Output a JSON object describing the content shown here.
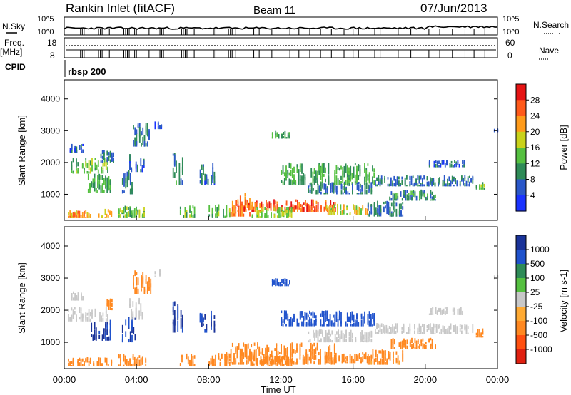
{
  "header": {
    "station": "Rankin Inlet (fitACF)",
    "beam": "Beam 11",
    "date": "07/Jun/2013"
  },
  "strip_labels": {
    "nsky": "N.Sky",
    "nsearch": "N.Search",
    "freq": "Freq.",
    "freq_unit": "[MHz]",
    "nave": "Nave",
    "cpid": "CPID",
    "mode": "rbsp 200",
    "noise_ticks_left": [
      "10^5",
      "10^0"
    ],
    "noise_ticks_right": [
      "10^5",
      "10^0"
    ],
    "freq_ticks": [
      "18",
      "8"
    ],
    "nave_ticks": [
      "60",
      "0"
    ]
  },
  "colors": {
    "power": [
      "#1a33ff",
      "#2a57c9",
      "#2e8b57",
      "#55c040",
      "#c9d21a",
      "#ff9b1a",
      "#ff5a1a",
      "#e61414"
    ],
    "velocity": [
      "#1a3399",
      "#1f52cc",
      "#2e8b57",
      "#55c040",
      "#c8c8c8",
      "#ffaa33",
      "#ff8820",
      "#ff5010",
      "#e02010"
    ]
  },
  "chart_data": [
    {
      "type": "heatmap",
      "quantity": "Power",
      "xlabel": "",
      "ylabel": "Slant Range [km]",
      "xlim": [
        0,
        24
      ],
      "ylim": [
        180,
        4600
      ],
      "yticks": [
        "1000",
        "2000",
        "3000",
        "4000"
      ],
      "colorbar": {
        "label": "Power [dB]",
        "ticks": [
          "28",
          "24",
          "20",
          "16",
          "12",
          "8",
          "4"
        ],
        "range": [
          0,
          32
        ]
      },
      "regions": [
        {
          "t0": 0.2,
          "t1": 1.5,
          "r0": 250,
          "r1": 500,
          "value": 22
        },
        {
          "t0": 0.2,
          "t1": 2.4,
          "r0": 1650,
          "r1": 2150,
          "value": 14
        },
        {
          "t0": 0.3,
          "t1": 1.0,
          "r0": 2300,
          "r1": 2600,
          "value": 6
        },
        {
          "t0": 1.3,
          "t1": 2.6,
          "r0": 1050,
          "r1": 1700,
          "value": 12
        },
        {
          "t0": 2.0,
          "t1": 2.7,
          "r0": 2000,
          "r1": 2400,
          "value": 8
        },
        {
          "t0": 1.8,
          "t1": 2.6,
          "r0": 250,
          "r1": 550,
          "value": 20
        },
        {
          "t0": 3.0,
          "t1": 4.5,
          "r0": 250,
          "r1": 650,
          "value": 14
        },
        {
          "t0": 3.2,
          "t1": 3.9,
          "r0": 1000,
          "r1": 1800,
          "value": 8
        },
        {
          "t0": 3.6,
          "t1": 4.4,
          "r0": 1700,
          "r1": 2400,
          "value": 6
        },
        {
          "t0": 3.8,
          "t1": 4.8,
          "r0": 2500,
          "r1": 3250,
          "value": 8
        },
        {
          "t0": 5.0,
          "t1": 5.4,
          "r0": 3050,
          "r1": 3300,
          "value": 6
        },
        {
          "t0": 6.0,
          "t1": 6.6,
          "r0": 1300,
          "r1": 2300,
          "value": 10
        },
        {
          "t0": 6.4,
          "t1": 7.2,
          "r0": 250,
          "r1": 650,
          "value": 14
        },
        {
          "t0": 7.5,
          "t1": 8.3,
          "r0": 1300,
          "r1": 2000,
          "value": 6
        },
        {
          "t0": 8.0,
          "t1": 9.2,
          "r0": 250,
          "r1": 700,
          "value": 14
        },
        {
          "t0": 9.2,
          "t1": 10.3,
          "r0": 300,
          "r1": 1050,
          "value": 24
        },
        {
          "t0": 9.5,
          "t1": 15.0,
          "r0": 450,
          "r1": 850,
          "value": 26
        },
        {
          "t0": 10.3,
          "t1": 12.6,
          "r0": 250,
          "r1": 600,
          "value": 16
        },
        {
          "t0": 11.5,
          "t1": 12.5,
          "r0": 2750,
          "r1": 3000,
          "value": 12
        },
        {
          "t0": 12.0,
          "t1": 17.2,
          "r0": 1300,
          "r1": 2000,
          "value": 12
        },
        {
          "t0": 13.5,
          "t1": 17.0,
          "r0": 1000,
          "r1": 1400,
          "value": 8
        },
        {
          "t0": 14.5,
          "t1": 16.8,
          "r0": 350,
          "r1": 700,
          "value": 18
        },
        {
          "t0": 16.8,
          "t1": 18.8,
          "r0": 300,
          "r1": 800,
          "value": 8
        },
        {
          "t0": 17.2,
          "t1": 22.6,
          "r0": 1250,
          "r1": 1600,
          "value": 8
        },
        {
          "t0": 18.0,
          "t1": 20.6,
          "r0": 800,
          "r1": 1150,
          "value": 10
        },
        {
          "t0": 20.2,
          "t1": 22.2,
          "r0": 1850,
          "r1": 2100,
          "value": 6
        },
        {
          "t0": 22.8,
          "t1": 23.3,
          "r0": 1150,
          "r1": 1450,
          "value": 14
        },
        {
          "t0": 23.8,
          "t1": 24.0,
          "r0": 2950,
          "r1": 3100,
          "value": 6
        }
      ]
    },
    {
      "type": "heatmap",
      "quantity": "Velocity",
      "xlabel": "Time UT",
      "ylabel": "Slant Range [km]",
      "xlim": [
        0,
        24
      ],
      "ylim": [
        180,
        4600
      ],
      "xticks": [
        "00:00",
        "04:00",
        "08:00",
        "12:00",
        "16:00",
        "20:00",
        "00:00"
      ],
      "yticks": [
        "1000",
        "2000",
        "3000",
        "4000"
      ],
      "colorbar": {
        "label": "Velocity [m s-1]",
        "ticks": [
          "1000",
          "500",
          "100",
          "25",
          "-25",
          "-100",
          "-500",
          "-1000"
        ]
      },
      "regions": [
        {
          "t0": 0.2,
          "t1": 1.6,
          "r0": 250,
          "r1": 550,
          "value": -300
        },
        {
          "t0": 0.2,
          "t1": 2.4,
          "r0": 1650,
          "r1": 2150,
          "value": 0
        },
        {
          "t0": 0.3,
          "t1": 1.0,
          "r0": 2300,
          "r1": 2600,
          "value": 0
        },
        {
          "t0": 1.3,
          "t1": 2.6,
          "r0": 1050,
          "r1": 1700,
          "value": 600
        },
        {
          "t0": 2.0,
          "t1": 2.7,
          "r0": 2000,
          "r1": 2400,
          "value": -150
        },
        {
          "t0": 1.8,
          "t1": 2.6,
          "r0": 250,
          "r1": 550,
          "value": -300
        },
        {
          "t0": 3.0,
          "t1": 4.5,
          "r0": 250,
          "r1": 650,
          "value": -200
        },
        {
          "t0": 3.2,
          "t1": 3.9,
          "r0": 1000,
          "r1": 1800,
          "value": 600
        },
        {
          "t0": 3.6,
          "t1": 4.4,
          "r0": 1700,
          "r1": 2400,
          "value": 0
        },
        {
          "t0": 3.8,
          "t1": 4.8,
          "r0": 2500,
          "r1": 3250,
          "value": -200
        },
        {
          "t0": 5.0,
          "t1": 5.4,
          "r0": 3050,
          "r1": 3300,
          "value": 0
        },
        {
          "t0": 6.0,
          "t1": 6.6,
          "r0": 1300,
          "r1": 2300,
          "value": 600
        },
        {
          "t0": 6.4,
          "t1": 7.2,
          "r0": 250,
          "r1": 650,
          "value": -200
        },
        {
          "t0": 7.5,
          "t1": 8.3,
          "r0": 1300,
          "r1": 2000,
          "value": 600
        },
        {
          "t0": 8.0,
          "t1": 9.2,
          "r0": 250,
          "r1": 700,
          "value": -200
        },
        {
          "t0": 9.2,
          "t1": 15.0,
          "r0": 300,
          "r1": 1000,
          "value": -200
        },
        {
          "t0": 10.3,
          "t1": 12.6,
          "r0": 250,
          "r1": 600,
          "value": -300
        },
        {
          "t0": 11.5,
          "t1": 12.5,
          "r0": 2750,
          "r1": 3000,
          "value": 200
        },
        {
          "t0": 12.0,
          "t1": 17.2,
          "r0": 1500,
          "r1": 2000,
          "value": 200
        },
        {
          "t0": 13.5,
          "t1": 17.0,
          "r0": 1000,
          "r1": 1400,
          "value": 0
        },
        {
          "t0": 14.5,
          "t1": 16.8,
          "r0": 350,
          "r1": 700,
          "value": -200
        },
        {
          "t0": 16.8,
          "t1": 18.8,
          "r0": 300,
          "r1": 800,
          "value": -150
        },
        {
          "t0": 17.2,
          "t1": 22.6,
          "r0": 1250,
          "r1": 1600,
          "value": 0
        },
        {
          "t0": 18.0,
          "t1": 20.6,
          "r0": 800,
          "r1": 1150,
          "value": -300
        },
        {
          "t0": 20.2,
          "t1": 22.2,
          "r0": 1850,
          "r1": 2100,
          "value": 0
        },
        {
          "t0": 22.8,
          "t1": 23.3,
          "r0": 1150,
          "r1": 1450,
          "value": -300
        },
        {
          "t0": 23.8,
          "t1": 24.0,
          "r0": 2950,
          "r1": 3100,
          "value": 0
        }
      ]
    }
  ]
}
